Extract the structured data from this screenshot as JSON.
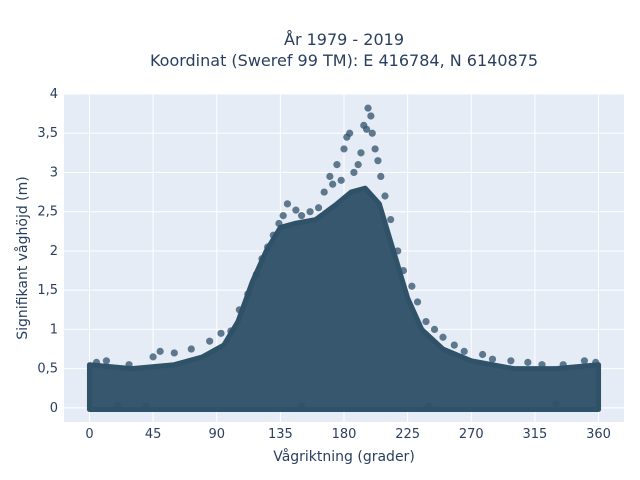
{
  "chart_data": {
    "type": "scatter",
    "title": "År 1979 - 2019",
    "subtitle": "Koordinat (Sweref 99 TM): E 416784, N 6140875",
    "xlabel": "Vågriktning (grader)",
    "ylabel": "Signifikant våghöjd (m)",
    "xlim": [
      -18,
      378
    ],
    "ylim": [
      -0.18,
      4.0
    ],
    "x_ticks": [
      0,
      45,
      90,
      135,
      180,
      225,
      270,
      315,
      360
    ],
    "x_tick_labels": [
      "0",
      "45",
      "90",
      "135",
      "180",
      "225",
      "270",
      "315",
      "360"
    ],
    "y_ticks": [
      0,
      0.5,
      1,
      1.5,
      2,
      2.5,
      3,
      3.5,
      4
    ],
    "y_tick_labels": [
      "0",
      "0,5",
      "1",
      "1,5",
      "2",
      "2,5",
      "3",
      "3,5",
      "4"
    ],
    "grid": true,
    "marker_color": "#2f5269",
    "plot_background": "#e5ecf6",
    "envelope": [
      {
        "x": 0,
        "y": 0.55
      },
      {
        "x": 30,
        "y": 0.5
      },
      {
        "x": 60,
        "y": 0.55
      },
      {
        "x": 80,
        "y": 0.65
      },
      {
        "x": 95,
        "y": 0.8
      },
      {
        "x": 105,
        "y": 1.1
      },
      {
        "x": 115,
        "y": 1.6
      },
      {
        "x": 125,
        "y": 2.0
      },
      {
        "x": 135,
        "y": 2.3
      },
      {
        "x": 145,
        "y": 2.35
      },
      {
        "x": 160,
        "y": 2.4
      },
      {
        "x": 175,
        "y": 2.6
      },
      {
        "x": 185,
        "y": 2.75
      },
      {
        "x": 195,
        "y": 2.8
      },
      {
        "x": 205,
        "y": 2.6
      },
      {
        "x": 215,
        "y": 2.0
      },
      {
        "x": 225,
        "y": 1.4
      },
      {
        "x": 235,
        "y": 1.0
      },
      {
        "x": 250,
        "y": 0.75
      },
      {
        "x": 270,
        "y": 0.6
      },
      {
        "x": 300,
        "y": 0.5
      },
      {
        "x": 330,
        "y": 0.5
      },
      {
        "x": 360,
        "y": 0.55
      }
    ],
    "points": [
      {
        "x": 5,
        "y": 0.58
      },
      {
        "x": 12,
        "y": 0.6
      },
      {
        "x": 28,
        "y": 0.55
      },
      {
        "x": 45,
        "y": 0.65
      },
      {
        "x": 50,
        "y": 0.72
      },
      {
        "x": 60,
        "y": 0.7
      },
      {
        "x": 72,
        "y": 0.75
      },
      {
        "x": 85,
        "y": 0.85
      },
      {
        "x": 93,
        "y": 0.95
      },
      {
        "x": 100,
        "y": 0.98
      },
      {
        "x": 106,
        "y": 1.25
      },
      {
        "x": 112,
        "y": 1.45
      },
      {
        "x": 118,
        "y": 1.7
      },
      {
        "x": 122,
        "y": 1.9
      },
      {
        "x": 126,
        "y": 2.05
      },
      {
        "x": 130,
        "y": 2.2
      },
      {
        "x": 134,
        "y": 2.35
      },
      {
        "x": 137,
        "y": 2.45
      },
      {
        "x": 140,
        "y": 2.6
      },
      {
        "x": 146,
        "y": 2.52
      },
      {
        "x": 150,
        "y": 2.45
      },
      {
        "x": 156,
        "y": 2.5
      },
      {
        "x": 162,
        "y": 2.55
      },
      {
        "x": 166,
        "y": 2.75
      },
      {
        "x": 170,
        "y": 2.95
      },
      {
        "x": 172,
        "y": 2.85
      },
      {
        "x": 175,
        "y": 3.1
      },
      {
        "x": 178,
        "y": 2.9
      },
      {
        "x": 180,
        "y": 3.3
      },
      {
        "x": 182,
        "y": 3.45
      },
      {
        "x": 184,
        "y": 3.5
      },
      {
        "x": 187,
        "y": 3.0
      },
      {
        "x": 190,
        "y": 3.1
      },
      {
        "x": 192,
        "y": 3.25
      },
      {
        "x": 194,
        "y": 3.6
      },
      {
        "x": 196,
        "y": 3.55
      },
      {
        "x": 197,
        "y": 3.82
      },
      {
        "x": 199,
        "y": 3.72
      },
      {
        "x": 200,
        "y": 3.5
      },
      {
        "x": 202,
        "y": 3.3
      },
      {
        "x": 204,
        "y": 3.15
      },
      {
        "x": 206,
        "y": 2.95
      },
      {
        "x": 209,
        "y": 2.7
      },
      {
        "x": 213,
        "y": 2.4
      },
      {
        "x": 218,
        "y": 2.0
      },
      {
        "x": 222,
        "y": 1.75
      },
      {
        "x": 228,
        "y": 1.55
      },
      {
        "x": 232,
        "y": 1.35
      },
      {
        "x": 238,
        "y": 1.1
      },
      {
        "x": 244,
        "y": 1.0
      },
      {
        "x": 250,
        "y": 0.9
      },
      {
        "x": 258,
        "y": 0.8
      },
      {
        "x": 265,
        "y": 0.72
      },
      {
        "x": 278,
        "y": 0.68
      },
      {
        "x": 285,
        "y": 0.62
      },
      {
        "x": 298,
        "y": 0.6
      },
      {
        "x": 310,
        "y": 0.58
      },
      {
        "x": 320,
        "y": 0.55
      },
      {
        "x": 335,
        "y": 0.55
      },
      {
        "x": 350,
        "y": 0.6
      },
      {
        "x": 358,
        "y": 0.58
      },
      {
        "x": 40,
        "y": 0.02
      },
      {
        "x": 20,
        "y": 0.03
      },
      {
        "x": 150,
        "y": 0.02
      },
      {
        "x": 240,
        "y": 0.02
      },
      {
        "x": 330,
        "y": 0.05
      }
    ]
  }
}
